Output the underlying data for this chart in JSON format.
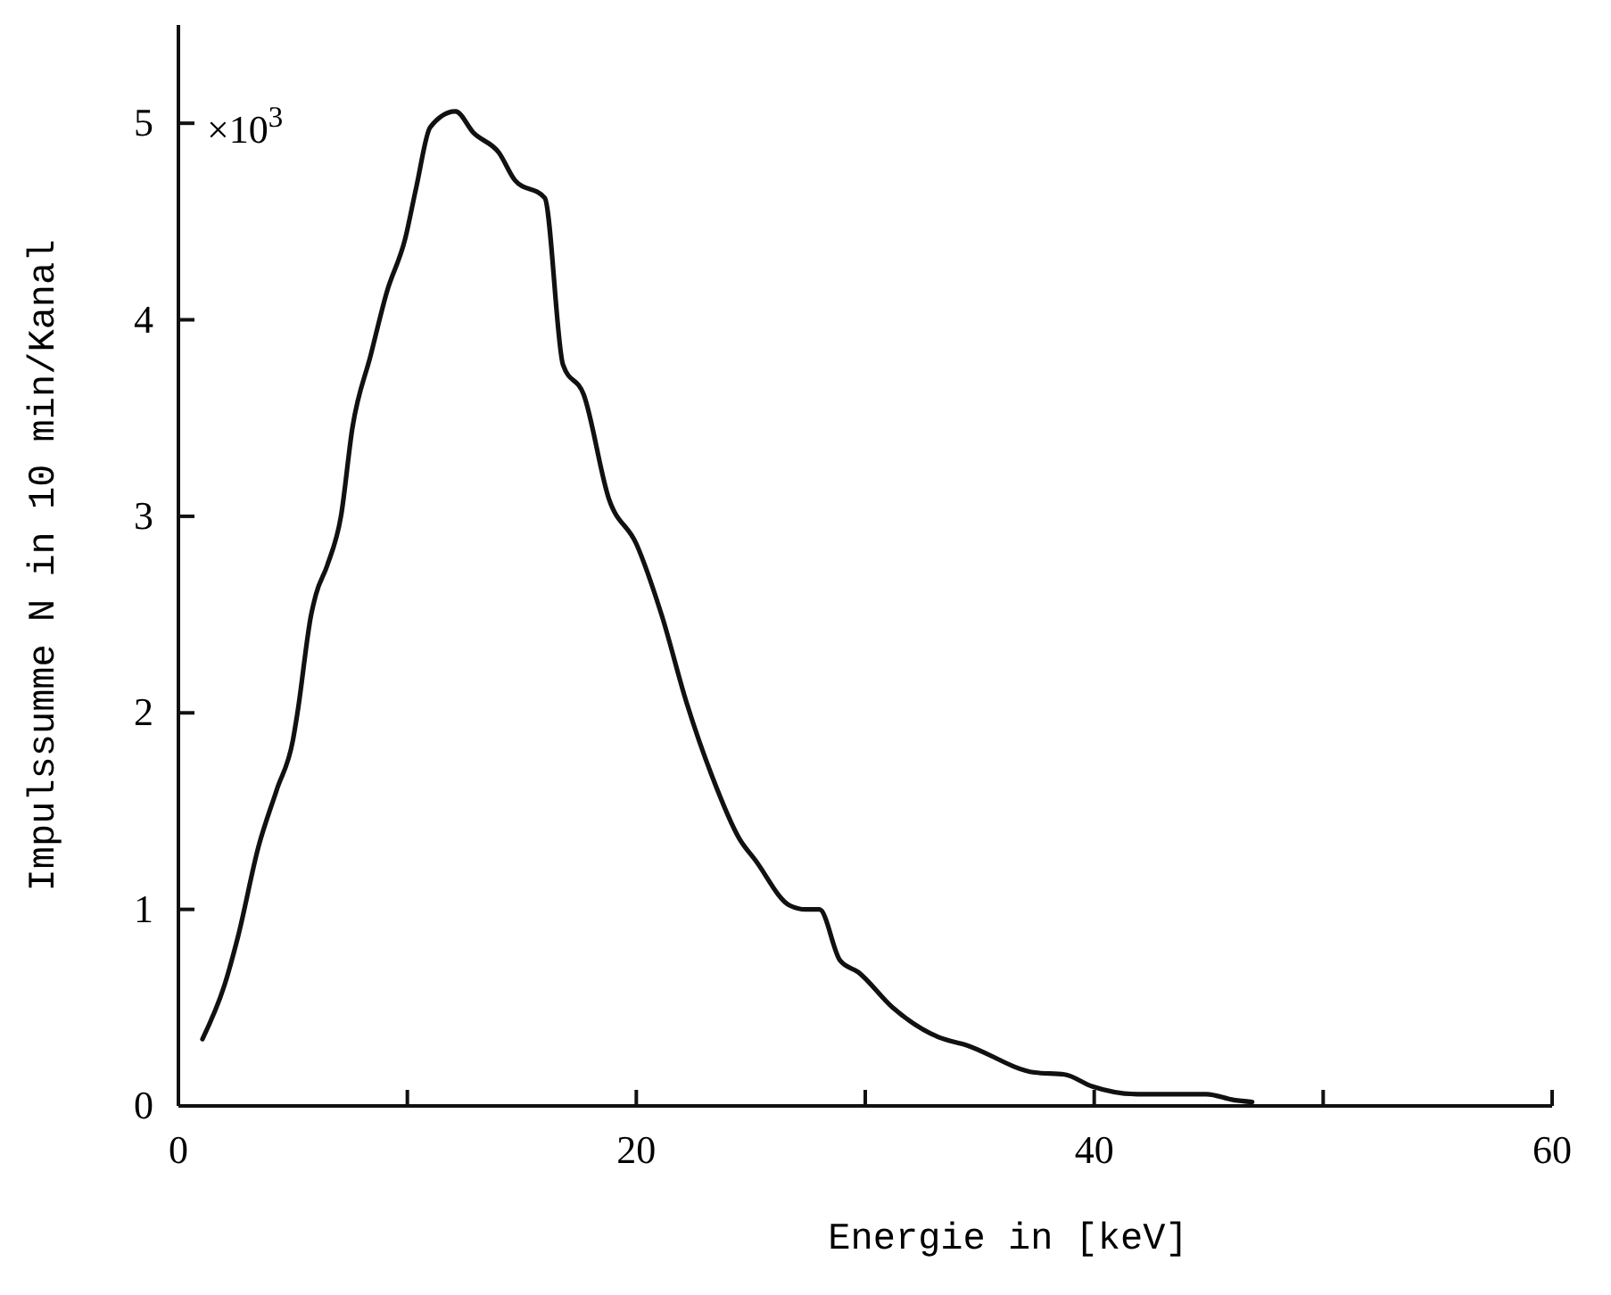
{
  "chart_data": {
    "type": "line",
    "xlabel": "Energie in [keV]",
    "ylabel": "Impulssumme N in 10 min/Kanal",
    "annotations": [
      "×10$^{3}$"
    ],
    "x": [
      1.05,
      2.0,
      2.6,
      3.5,
      4.3,
      5.0,
      5.2,
      5.8,
      6.0,
      6.5,
      7.1,
      7.6,
      8.4,
      9.1,
      9.9,
      10.4,
      11.0,
      12.1,
      12.9,
      14.0,
      14.7,
      16.0,
      16.8,
      17.7,
      18.8,
      20.0,
      21.1,
      22.2,
      23.3,
      24.5,
      25.2,
      26.7,
      27.4,
      28.0,
      28.9,
      29.7,
      31.2,
      33.2,
      34.4,
      37.4,
      38.7,
      39.9,
      41.9,
      44.9,
      46.1,
      46.9
    ],
    "series": [
      {
        "color": "#111111",
        "values": [
          0.34,
          0.61,
          0.86,
          1.32,
          1.61,
          1.86,
          2.0,
          2.5,
          2.6,
          2.75,
          3.0,
          3.45,
          3.82,
          4.14,
          4.41,
          4.68,
          4.98,
          5.06,
          4.95,
          4.85,
          4.71,
          4.62,
          3.77,
          3.62,
          3.09,
          2.86,
          2.5,
          2.05,
          1.68,
          1.36,
          1.25,
          1.02,
          1.0,
          1.0,
          0.74,
          0.68,
          0.5,
          0.35,
          0.31,
          0.17,
          0.16,
          0.1,
          0.06,
          0.06,
          0.03,
          0.02
        ]
      }
    ],
    "xlim": [
      0,
      60
    ],
    "ylim": [
      0,
      5.5
    ],
    "xticks": [
      0,
      {
        "value": 10,
        "label": null
      },
      20,
      {
        "value": 30,
        "label": null
      },
      40,
      {
        "value": 50,
        "label": null
      },
      60
    ],
    "yticks": [
      0,
      1,
      2,
      3,
      4,
      5
    ],
    "grid": false,
    "marker": "none",
    "line_style": "solid"
  }
}
